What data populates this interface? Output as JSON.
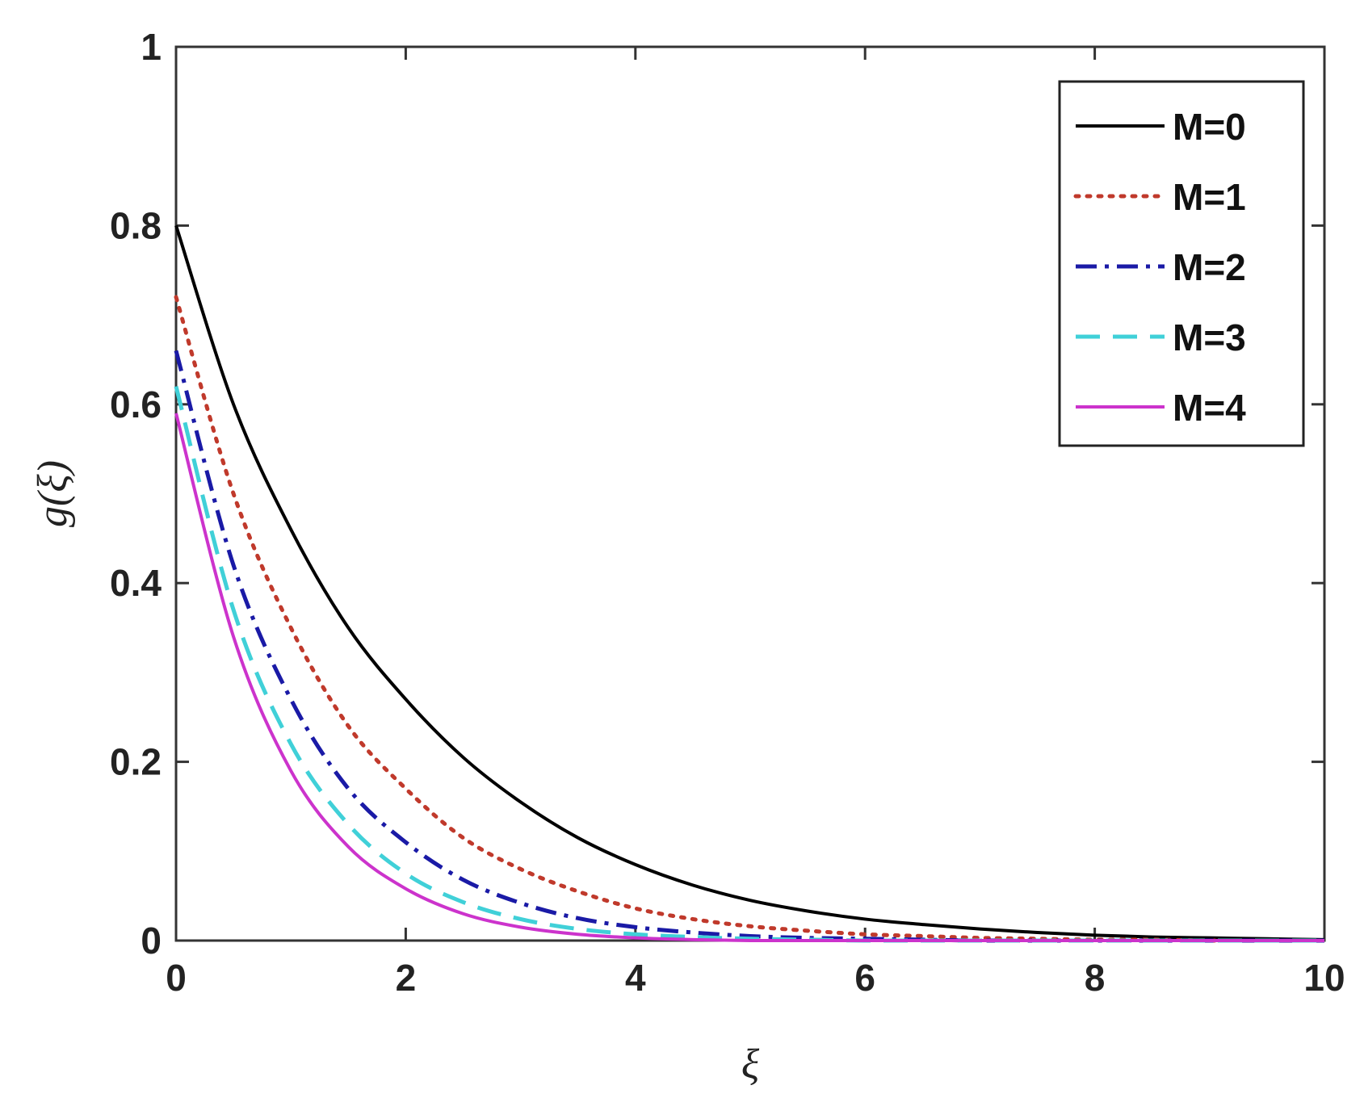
{
  "chart_data": {
    "type": "line",
    "title": "",
    "xlabel": "ξ",
    "ylabel": "g(ξ)",
    "xlim": [
      0,
      10
    ],
    "ylim": [
      0,
      1
    ],
    "xticks": [
      0,
      2,
      4,
      6,
      8,
      10
    ],
    "yticks": [
      0,
      0.2,
      0.4,
      0.6,
      0.8,
      1
    ],
    "xtick_labels": [
      "0",
      "2",
      "4",
      "6",
      "8",
      "10"
    ],
    "ytick_labels": [
      "0",
      "0.2",
      "0.4",
      "0.6",
      "0.8",
      "1"
    ],
    "grid": false,
    "legend_position": "top-right",
    "x": [
      0,
      0.5,
      1,
      1.5,
      2,
      2.5,
      3,
      3.5,
      4,
      4.5,
      5,
      5.5,
      6,
      6.5,
      7,
      7.5,
      8,
      8.5,
      9,
      9.5,
      10
    ],
    "series": [
      {
        "name": "M=0",
        "color": "#000000",
        "dash": "solid",
        "values": [
          0.8,
          0.6,
          0.46,
          0.35,
          0.27,
          0.205,
          0.155,
          0.115,
          0.085,
          0.062,
          0.045,
          0.033,
          0.024,
          0.018,
          0.013,
          0.009,
          0.006,
          0.004,
          0.003,
          0.002,
          0.001
        ]
      },
      {
        "name": "M=1",
        "color": "#c0392b",
        "dash": "dotted",
        "values": [
          0.72,
          0.5,
          0.35,
          0.24,
          0.17,
          0.115,
          0.08,
          0.055,
          0.036,
          0.024,
          0.016,
          0.011,
          0.007,
          0.005,
          0.003,
          0.002,
          0.001,
          0.001,
          0,
          0,
          0
        ]
      },
      {
        "name": "M=2",
        "color": "#1a1aa6",
        "dash": "dashdot",
        "values": [
          0.66,
          0.42,
          0.27,
          0.17,
          0.11,
          0.068,
          0.042,
          0.025,
          0.015,
          0.009,
          0.005,
          0.003,
          0.002,
          0.001,
          0,
          0,
          0,
          0,
          0,
          0,
          0
        ]
      },
      {
        "name": "M=3",
        "color": "#40d0d8",
        "dash": "dashed",
        "values": [
          0.62,
          0.37,
          0.22,
          0.13,
          0.075,
          0.043,
          0.024,
          0.013,
          0.007,
          0.004,
          0.002,
          0.001,
          0,
          0,
          0,
          0,
          0,
          0,
          0,
          0,
          0
        ]
      },
      {
        "name": "M=4",
        "color": "#cc33cc",
        "dash": "solid",
        "values": [
          0.59,
          0.34,
          0.19,
          0.105,
          0.058,
          0.03,
          0.015,
          0.007,
          0.003,
          0.001,
          0,
          0,
          0,
          0,
          0,
          0,
          0,
          0,
          0,
          0,
          0
        ]
      }
    ]
  }
}
